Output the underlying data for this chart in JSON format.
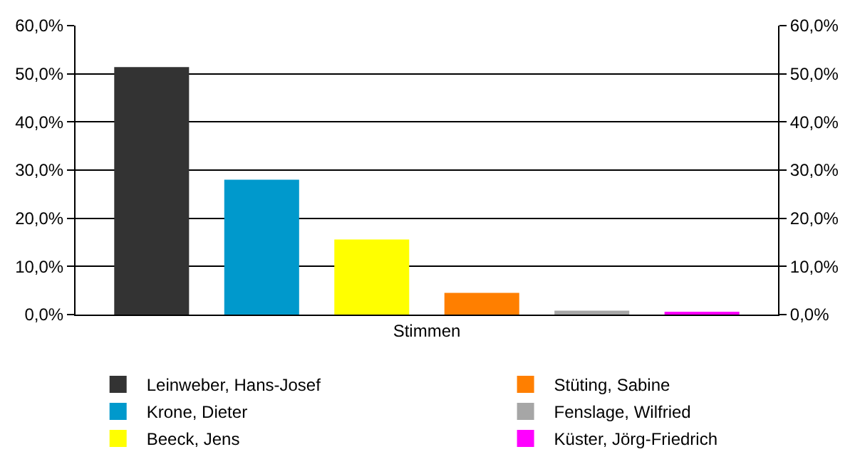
{
  "chart_data": {
    "type": "bar",
    "categories": [
      "Stimmen"
    ],
    "series": [
      {
        "name": "Leinweber, Hans-Josef",
        "color": "#333333",
        "values": [
          51.4
        ]
      },
      {
        "name": "Krone, Dieter",
        "color": "#0099cc",
        "values": [
          28.0
        ]
      },
      {
        "name": "Beeck, Jens",
        "color": "#ffff00",
        "values": [
          15.6
        ]
      },
      {
        "name": "Stüting, Sabine",
        "color": "#ff7f00",
        "values": [
          4.5
        ]
      },
      {
        "name": "Fenslage, Wilfried",
        "color": "#a6a6a6",
        "values": [
          0.8
        ]
      },
      {
        "name": "Küster, Jörg-Friedrich",
        "color": "#ff00ff",
        "values": [
          0.3
        ]
      }
    ],
    "ylim": [
      0,
      60
    ],
    "yticks": [
      {
        "value": 0,
        "label": "0,0%"
      },
      {
        "value": 10,
        "label": "10,0%"
      },
      {
        "value": 20,
        "label": "20,0%"
      },
      {
        "value": 30,
        "label": "30,0%"
      },
      {
        "value": 40,
        "label": "40,0%"
      },
      {
        "value": 50,
        "label": "50,0%"
      },
      {
        "value": 60,
        "label": "60,0%"
      }
    ],
    "grid": "y",
    "legend": "bottom"
  }
}
